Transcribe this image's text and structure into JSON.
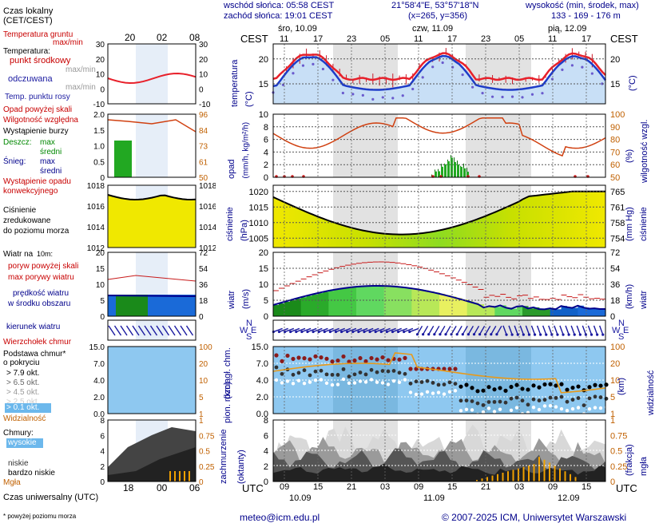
{
  "header": {
    "sunrise": "wschód słońca: 05:58 CEST",
    "sunset": "zachód słońca: 19:01 CEST",
    "coords": "21°58'4\"E, 53°57'18\"N",
    "grid": "(x=265, y=356)",
    "elevation_label": "wysokość (min, środek, max)",
    "elevation_values": "133 - 169 - 176 m"
  },
  "top_axis": {
    "cest": "CEST",
    "days": [
      "śro, 10.09",
      "czw, 11.09",
      "pią, 12.09"
    ],
    "hours": [
      "11",
      "17",
      "23",
      "05",
      "11",
      "17",
      "23",
      "05",
      "11",
      "17"
    ]
  },
  "bottom_axis": {
    "utc": "UTC",
    "hours": [
      "09",
      "15",
      "21",
      "03",
      "09",
      "15",
      "21",
      "03",
      "09",
      "15"
    ],
    "dates": [
      "10.09",
      "11.09",
      "12.09"
    ]
  },
  "legend": {
    "local_time": "Czas lokalny",
    "local_time2": "(CET/CEST)",
    "local_hours": [
      "20",
      "02",
      "08"
    ],
    "soil_temp": "Temperatura gruntu",
    "soil_temp2": "max/min",
    "temperature": "Temperatura:",
    "mid_point": "punkt środkowy",
    "max_min": "max/min",
    "perceived": "odczuwana",
    "perceived_mm": "max/min",
    "dew_point": "Temp. punktu rosy",
    "precip_threshold": "Opad powyżej skali",
    "humidity": "Wilgotność względna",
    "storm": "Wystąpienie burzy",
    "rain": "Deszcz:",
    "rain_max": "max",
    "rain_mean": "średni",
    "snow": "Śnieg:",
    "snow_max": "max",
    "snow_mean": "średni",
    "convective": "Wystąpienie opadu",
    "convective2": "konwekcyjnego",
    "pressure": "Ciśnienie",
    "pressure2": "zredukowane",
    "pressure3": "do poziomu morza",
    "wind": "Wiatr na",
    "wind_height": "10m:",
    "gust_over": "poryw powyżej skali",
    "gust_max": "max porywy wiatru",
    "wind_avg": "prędkość wiatru",
    "wind_avg2": "w środku obszaru",
    "wind_dir": "kierunek wiatru",
    "cb_top": "Wierzchołek chmur",
    "cloud_base": "Podstawa chmur*",
    "cloud_base2": "o pokryciu",
    "okt": [
      "> 7.9 okt.",
      "> 6.5 okt.",
      "> 4.5 okt.",
      "> 2.5 okt.",
      "> 0.1 okt."
    ],
    "visibility": "Widzialność",
    "clouds": "Chmury:",
    "cloud_levels": [
      "wysokie",
      "średnie",
      "niskie",
      "bardzo niskie"
    ],
    "fog": "Mgła",
    "utc_time": "Czas uniwersalny (UTC)",
    "utc_hours": [
      "18",
      "00",
      "06"
    ],
    "footnote": "* powyżej poziomu morza"
  },
  "panels": {
    "temp": {
      "label": "temperatura",
      "unit": "(°C)",
      "ticks": [
        "20",
        "15"
      ]
    },
    "precip": {
      "label": "opad",
      "unit": "(mm/h, kg/m²/h)",
      "ticks": [
        "10",
        "8",
        "6",
        "4",
        "2",
        "0"
      ],
      "right_label": "wilgotność wzgl.",
      "right_unit": "(%)",
      "right_ticks": [
        "100",
        "90",
        "80",
        "70",
        "60",
        "50"
      ]
    },
    "pressure": {
      "label": "ciśnienie",
      "unit": "(hPa)",
      "ticks": [
        "1020",
        "1015",
        "1010",
        "1005"
      ],
      "right_label": "ciśnienie",
      "right_unit": "(mm Hg)",
      "right_ticks": [
        "765",
        "761",
        "758",
        "754"
      ]
    },
    "wind": {
      "label": "wiatr",
      "unit": "(m/s)",
      "ticks": [
        "20",
        "15",
        "10",
        "5",
        "0"
      ],
      "right_label": "wiatr",
      "right_unit": "(km/h)",
      "right_ticks": [
        "72",
        "54",
        "36",
        "18",
        "0"
      ]
    },
    "cloudbase": {
      "label": "pion. rozciągł. chm.",
      "unit": "(km)",
      "ticks": [
        "15.0",
        "7.0",
        "4.0",
        "2.0",
        "0.0"
      ],
      "right_label": "widzialność",
      "right_unit": "(km)",
      "right_ticks": [
        "100",
        "20",
        "10",
        "5",
        "1"
      ]
    },
    "cloud": {
      "label": "zachmurzenie",
      "unit": "(oktanty)",
      "ticks": [
        "8",
        "6",
        "4",
        "2",
        "0"
      ],
      "right_label": "mgła",
      "right_unit": "(frakcja)",
      "right_ticks": [
        "1",
        "0.75",
        "0.5",
        "0.25",
        "0"
      ]
    }
  },
  "legend_scales": {
    "temp": [
      "30",
      "20",
      "10",
      "0",
      "-10"
    ],
    "temp_r": [
      "30",
      "20",
      "10",
      "0",
      "-10"
    ],
    "precip": [
      "2.0",
      "1.5",
      "1.0",
      "0.5",
      "0"
    ],
    "hum_r": [
      "96",
      "84",
      "73",
      "61",
      "50"
    ],
    "press": [
      "1018",
      "1016",
      "1014",
      "1012"
    ],
    "press_r": [
      "1018",
      "1016",
      "1014",
      "1012"
    ],
    "wind": [
      "20",
      "15",
      "10",
      "5",
      "0"
    ],
    "wind_r": [
      "72",
      "54",
      "36",
      "18",
      "0"
    ],
    "cb": [
      "15.0",
      "7.0",
      "4.0",
      "2.0",
      "0.0"
    ],
    "cb_r": [
      "100",
      "20",
      "10",
      "5",
      "1"
    ],
    "cloud": [
      "8",
      "6",
      "4",
      "2",
      "0"
    ],
    "cloud_r": [
      "1",
      "0.75",
      "0.5",
      "0.25",
      "0"
    ]
  },
  "footer": {
    "email": "meteo@icm.edu.pl",
    "copyright": "© 2007-2025 ICM, Uniwersytet Warszawski"
  },
  "colors": {
    "temp": "#e8202a",
    "perceived": "#1e3cc8",
    "pressure_fill": "#f0e800",
    "wind_fill": "#22b822",
    "sky": "#8ec8f0"
  }
}
